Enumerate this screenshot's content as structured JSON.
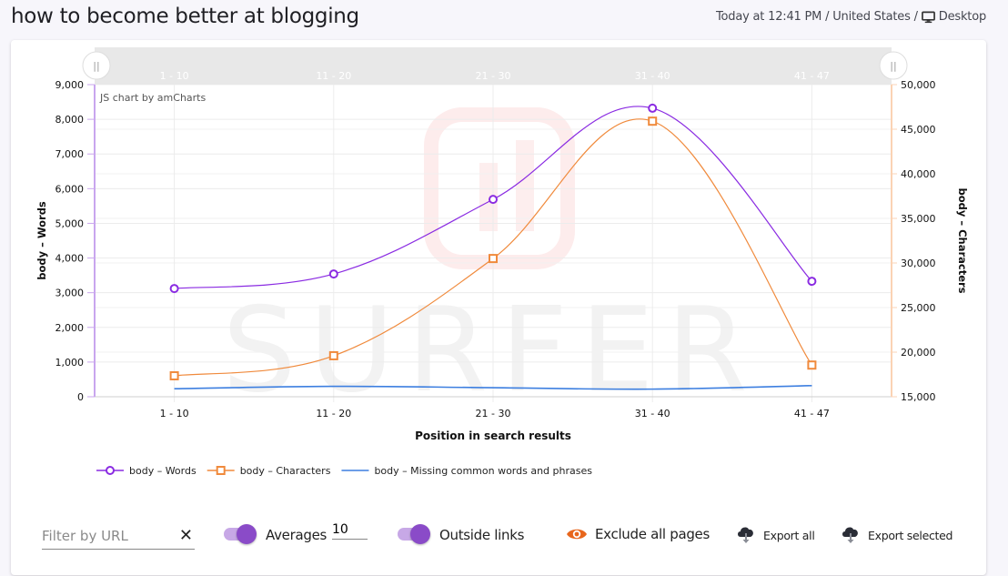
{
  "header": {
    "title": "how to become better at blogging",
    "meta_text": "Today at 12:41 PM / United States /",
    "device_icon": "desktop-monitor-icon",
    "device_label": "Desktop"
  },
  "chart": {
    "credit": "JS chart by amCharts",
    "watermark": "SURFER",
    "scrollbar_labels": [
      "1 - 10",
      "11 - 20",
      "21 - 30",
      "31 - 40",
      "41 - 47"
    ],
    "handle_glyph": "||"
  },
  "chart_data": {
    "type": "line",
    "title": "",
    "xlabel": "Position in search results",
    "ylabel": "body – Words",
    "y2label": "body – Characters",
    "categories": [
      "1 - 10",
      "11 - 20",
      "21 - 30",
      "31 - 40",
      "41 - 47"
    ],
    "ylim": [
      0,
      9000
    ],
    "y2lim": [
      15000,
      50000
    ],
    "yticks": [
      "0",
      "1,000",
      "2,000",
      "3,000",
      "4,000",
      "5,000",
      "6,000",
      "7,000",
      "8,000",
      "9,000"
    ],
    "y2ticks": [
      "15,000",
      "20,000",
      "25,000",
      "30,000",
      "35,000",
      "40,000",
      "45,000",
      "50,000"
    ],
    "grid": true,
    "smoothed": true,
    "legend_position": "bottom",
    "series": [
      {
        "name": "body – Words",
        "axis": "left",
        "color": "#8a2be2",
        "marker": "circle",
        "values": [
          3120,
          3540,
          5690,
          8320,
          3330
        ]
      },
      {
        "name": "body – Characters",
        "axis": "right",
        "color": "#f08a3c",
        "marker": "square",
        "values": [
          17350,
          19600,
          30500,
          45900,
          18550
        ]
      },
      {
        "name": "body – Missing common words and phrases",
        "axis": "left",
        "color": "#3d7fe0",
        "marker": "none",
        "values": [
          230,
          300,
          260,
          220,
          320
        ]
      }
    ]
  },
  "controls": {
    "filter_placeholder": "Filter by URL",
    "filter_value": "",
    "clear_glyph": "✕",
    "averages_label": "Averages",
    "averages_value": "10",
    "averages_on": true,
    "outside_links_label": "Outside links",
    "outside_links_on": true,
    "exclude_label": "Exclude all pages",
    "export_all_label": "Export all",
    "export_selected_label": "Export selected"
  },
  "colors": {
    "accent_purple": "#8a4bc8",
    "toggle_track": "#c7a8e6",
    "eye_orange": "#e8661c",
    "words_line": "#8a2be2",
    "chars_line": "#f08a3c",
    "missing_line": "#3d7fe0"
  }
}
